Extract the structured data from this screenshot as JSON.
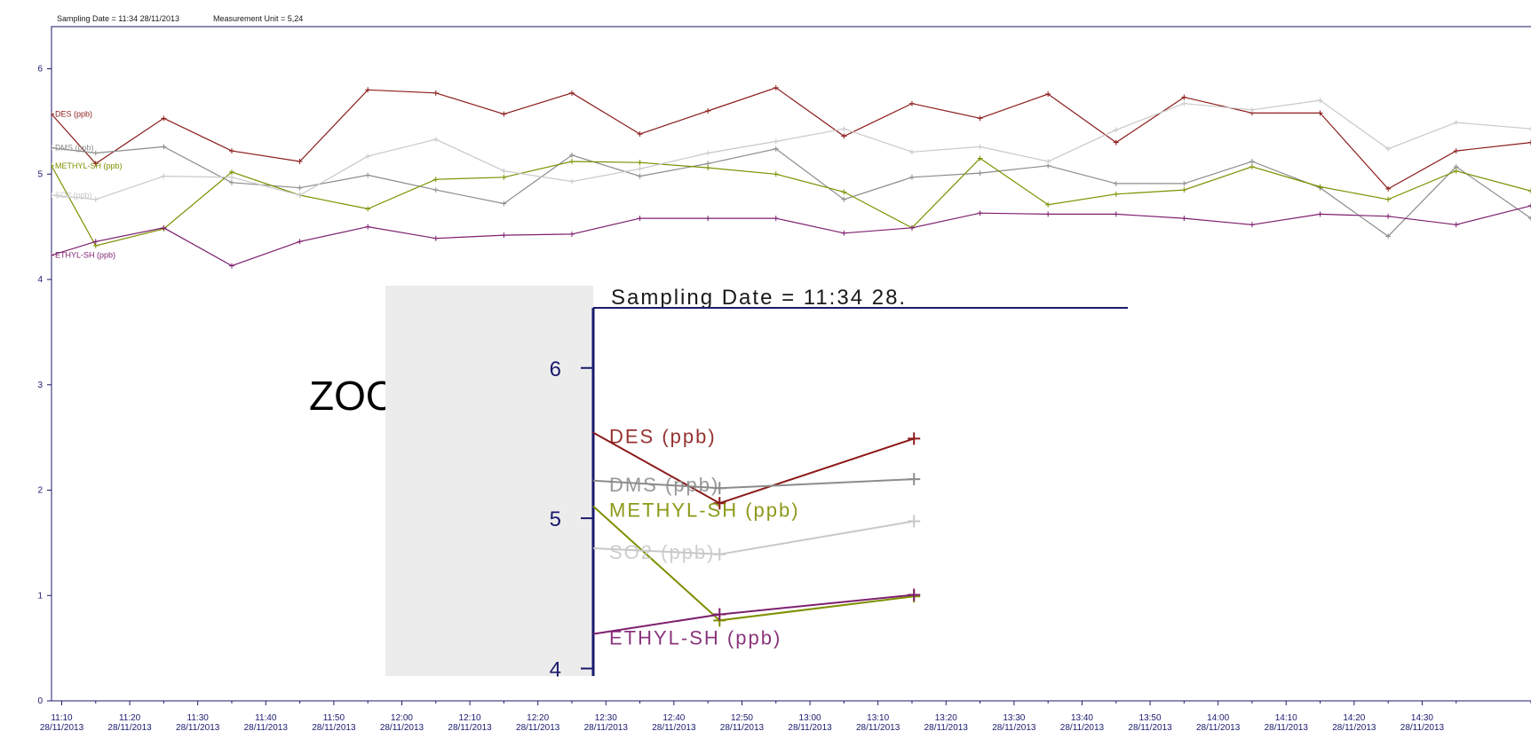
{
  "header": {
    "sampling_date_text": "Sampling Date = 11:34 28/11/2013",
    "measurement_unit_text": "Measurement Unit = 5,24"
  },
  "zoom_label": "ZOOM",
  "colors": {
    "DES": "#8b1a1a",
    "DMS": "#8c8c8c",
    "METHYL-SH": "#7f8f00",
    "SO2": "#c8c8c8",
    "ETHYL-SH": "#7d1f6e",
    "axis": "#1a1a6e"
  },
  "chart_data": [
    {
      "type": "line",
      "title": "",
      "xlabel": "",
      "ylabel": "",
      "ylim": [
        0,
        6.4
      ],
      "yticks": [
        0,
        1,
        2,
        3,
        4,
        5,
        6
      ],
      "grid": false,
      "x_tick_labels": [
        {
          "time": "11:10",
          "date": "28/11/2013"
        },
        {
          "time": "11:20",
          "date": "28/11/2013"
        },
        {
          "time": "11:30",
          "date": "28/11/2013"
        },
        {
          "time": "11:40",
          "date": "28/11/2013"
        },
        {
          "time": "11:50",
          "date": "28/11/2013"
        },
        {
          "time": "12:00",
          "date": "28/11/2013"
        },
        {
          "time": "12:10",
          "date": "28/11/2013"
        },
        {
          "time": "12:20",
          "date": "28/11/2013"
        },
        {
          "time": "12:30",
          "date": "28/11/2013"
        },
        {
          "time": "12:40",
          "date": "28/11/2013"
        },
        {
          "time": "12:50",
          "date": "28/11/2013"
        },
        {
          "time": "13:00",
          "date": "28/11/2013"
        },
        {
          "time": "13:10",
          "date": "28/11/2013"
        },
        {
          "time": "13:20",
          "date": "28/11/2013"
        },
        {
          "time": "13:30",
          "date": "28/11/2013"
        },
        {
          "time": "13:40",
          "date": "28/11/2013"
        },
        {
          "time": "13:50",
          "date": "28/11/2013"
        },
        {
          "time": "14:00",
          "date": "28/11/2013"
        },
        {
          "time": "14:10",
          "date": "28/11/2013"
        },
        {
          "time": "14:20",
          "date": "28/11/2013"
        },
        {
          "time": "14:30",
          "date": "28/11/2013"
        }
      ],
      "x_range_minutes_from_1110": [
        -1.5,
        216
      ],
      "sample_times_minutes_from_1110": [
        -1.5,
        5,
        15,
        25,
        35,
        45,
        55,
        65,
        75,
        85,
        95,
        105,
        115,
        125,
        135,
        145,
        155,
        165,
        175,
        185,
        195,
        205,
        216
      ],
      "series": [
        {
          "name": "DES (ppb)",
          "color_key": "DES",
          "values": [
            5.57,
            5.1,
            5.53,
            5.22,
            5.12,
            5.8,
            5.77,
            5.57,
            5.77,
            5.38,
            5.6,
            5.82,
            5.36,
            5.67,
            5.53,
            5.76,
            5.3,
            5.73,
            5.58,
            5.58,
            4.86,
            5.22,
            5.3
          ]
        },
        {
          "name": "DMS (ppb)",
          "color_key": "DMS",
          "values": [
            5.25,
            5.2,
            5.26,
            4.92,
            4.87,
            4.99,
            4.85,
            4.72,
            5.18,
            4.98,
            5.1,
            5.24,
            4.76,
            4.97,
            5.01,
            5.08,
            4.91,
            4.91,
            5.12,
            4.87,
            4.41,
            5.07,
            4.58
          ]
        },
        {
          "name": "METHYL-SH (ppb)",
          "color_key": "METHYL-SH",
          "values": [
            5.08,
            4.32,
            4.48,
            5.02,
            4.8,
            4.67,
            4.95,
            4.97,
            5.12,
            5.11,
            5.06,
            5.0,
            4.83,
            4.49,
            5.15,
            4.71,
            4.81,
            4.85,
            5.07,
            4.88,
            4.76,
            5.03,
            4.84
          ]
        },
        {
          "name": "SO2 (ppb)",
          "color_key": "SO2",
          "values": [
            4.8,
            4.76,
            4.98,
            4.97,
            4.8,
            5.17,
            5.33,
            5.03,
            4.93,
            5.05,
            5.2,
            5.31,
            5.43,
            5.21,
            5.26,
            5.12,
            5.42,
            5.67,
            5.61,
            5.7,
            5.24,
            5.49,
            5.43
          ]
        },
        {
          "name": "ETHYL-SH (ppb)",
          "color_key": "ETHYL-SH",
          "values": [
            4.23,
            4.36,
            4.49,
            4.13,
            4.36,
            4.5,
            4.39,
            4.42,
            4.43,
            4.58,
            4.58,
            4.58,
            4.44,
            4.49,
            4.63,
            4.62,
            4.62,
            4.58,
            4.52,
            4.62,
            4.6,
            4.52,
            4.7
          ]
        }
      ]
    },
    {
      "type": "line",
      "title": "Sampling Date = 11:34 28.",
      "xlabel": "",
      "ylabel": "",
      "ylim": [
        3.95,
        6.4
      ],
      "yticks": [
        4,
        5,
        6
      ],
      "grid": false,
      "x_range_minutes_from_1110": [
        -1.5,
        26
      ],
      "sample_times_minutes_from_1110": [
        -1.5,
        5,
        15
      ],
      "series": [
        {
          "name": "DES (ppb)",
          "color_key": "DES",
          "values": [
            5.57,
            5.1,
            5.53
          ]
        },
        {
          "name": "DMS (ppb)",
          "color_key": "DMS",
          "values": [
            5.25,
            5.2,
            5.26
          ]
        },
        {
          "name": "METHYL-SH (ppb)",
          "color_key": "METHYL-SH",
          "values": [
            5.08,
            4.32,
            4.48
          ]
        },
        {
          "name": "SO2 (ppb)",
          "color_key": "SO2",
          "values": [
            4.8,
            4.76,
            4.98
          ]
        },
        {
          "name": "ETHYL-SH (ppb)",
          "color_key": "ETHYL-SH",
          "values": [
            4.23,
            4.36,
            4.49
          ]
        }
      ]
    }
  ]
}
